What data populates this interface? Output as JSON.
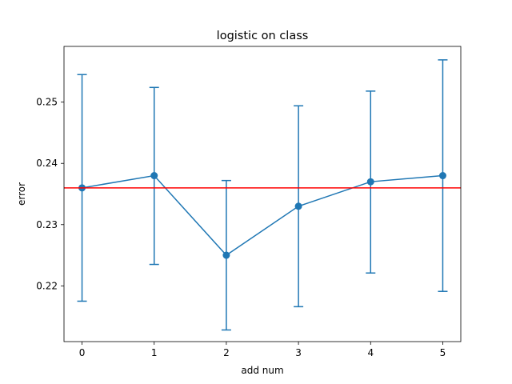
{
  "chart_data": {
    "type": "line",
    "title": "logistic on class",
    "xlabel": "add num",
    "ylabel": "error",
    "x": [
      0,
      1,
      2,
      3,
      4,
      5
    ],
    "xticks": [
      "0",
      "1",
      "2",
      "3",
      "4",
      "5"
    ],
    "xlim": [
      -0.25,
      5.25
    ],
    "yticks": [
      "0.22",
      "0.23",
      "0.24",
      "0.25"
    ],
    "ytick_values": [
      0.22,
      0.23,
      0.24,
      0.25
    ],
    "ylim": [
      0.2109,
      0.2591
    ],
    "series": [
      {
        "values": [
          0.236,
          0.238,
          0.225,
          0.233,
          0.237,
          0.238
        ],
        "err_low": [
          0.2175,
          0.2235,
          0.2128,
          0.2166,
          0.2221,
          0.2191
        ],
        "err_high": [
          0.2545,
          0.2524,
          0.2372,
          0.2494,
          0.2518,
          0.2569
        ],
        "color": "#1f77b4"
      }
    ],
    "reference_line": {
      "y": 0.236,
      "color": "#ff0000"
    },
    "grid": false,
    "legend": "none"
  }
}
